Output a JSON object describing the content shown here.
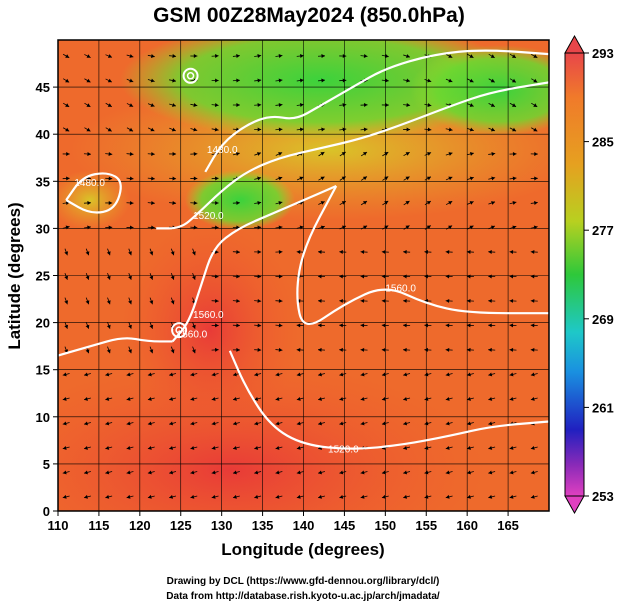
{
  "chart_data": {
    "type": "heatmap",
    "title": "GSM 00Z28May2024 (850.0hPa)",
    "xlabel": "Longitude (degrees)",
    "ylabel": "Latitude  (degrees)",
    "xlim": [
      110,
      170
    ],
    "ylim": [
      0,
      50
    ],
    "x_ticks": [
      "110",
      "115",
      "120",
      "125",
      "130",
      "135",
      "140",
      "145",
      "150",
      "155",
      "160",
      "165"
    ],
    "y_ticks": [
      "0",
      "5",
      "10",
      "15",
      "20",
      "25",
      "30",
      "35",
      "40",
      "45"
    ],
    "grid": true,
    "colorbar": {
      "placement": "right",
      "min": 253,
      "max": 293,
      "tick_labels": [
        "293",
        "285",
        "277",
        "269",
        "261",
        "253"
      ]
    },
    "contours": [
      {
        "label": "1560.0",
        "points": [
          [
            110,
            16.5
          ],
          [
            114,
            17.5
          ],
          [
            118,
            18.5
          ],
          [
            121,
            18
          ],
          [
            124,
            18
          ]
        ],
        "label_at": [
          124.5,
          18.4
        ]
      },
      {
        "label": "1560.0",
        "points": [
          [
            124,
            18
          ],
          [
            126,
            20
          ],
          [
            127.5,
            24
          ],
          [
            129,
            28
          ],
          [
            132,
            30
          ],
          [
            136,
            31.5
          ],
          [
            140,
            33
          ],
          [
            144,
            34.5
          ]
        ],
        "label_at": [
          126.5,
          20.5
        ]
      },
      {
        "label": "1560.0",
        "points": [
          [
            144,
            34.5
          ],
          [
            140,
            28
          ],
          [
            139,
            23
          ],
          [
            140,
            19
          ],
          [
            145,
            22
          ],
          [
            150,
            24
          ],
          [
            155,
            22
          ],
          [
            160,
            21
          ],
          [
            170,
            21
          ]
        ],
        "label_at": [
          150,
          23.3
        ]
      },
      {
        "label": "1520.0",
        "points": [
          [
            131,
            17
          ],
          [
            133,
            13
          ],
          [
            136,
            9
          ],
          [
            140,
            7
          ],
          [
            146,
            6.5
          ],
          [
            152,
            7
          ],
          [
            158,
            8
          ],
          [
            163,
            9
          ],
          [
            170,
            9.5
          ]
        ],
        "label_at": [
          143,
          6.2
        ]
      },
      {
        "label": "1520.0",
        "points": [
          [
            122,
            30
          ],
          [
            125,
            30
          ],
          [
            127,
            31.5
          ],
          [
            130,
            34
          ],
          [
            133,
            36
          ],
          [
            137,
            37.5
          ],
          [
            142,
            38.5
          ],
          [
            147,
            39.5
          ],
          [
            152,
            41
          ],
          [
            158,
            43
          ],
          [
            163,
            44.5
          ],
          [
            170,
            45.5
          ]
        ],
        "label_at": [
          126.5,
          31
        ]
      },
      {
        "label": "1480.0",
        "points": [
          [
            128,
            36
          ],
          [
            130,
            39
          ],
          [
            133,
            41
          ],
          [
            136,
            42
          ],
          [
            139,
            41.5
          ],
          [
            142,
            43
          ],
          [
            146,
            45
          ],
          [
            150,
            47
          ],
          [
            156,
            48.5
          ],
          [
            162,
            49
          ],
          [
            170,
            48.5
          ]
        ],
        "label_at": [
          128.2,
          38
        ]
      },
      {
        "label": "1480.0",
        "points": [
          [
            111,
            33
          ],
          [
            113,
            35.5
          ],
          [
            116,
            36
          ],
          [
            118,
            35
          ],
          [
            117,
            32
          ],
          [
            114,
            31.5
          ],
          [
            111,
            33
          ]
        ],
        "label_at": [
          112,
          34.5
        ]
      }
    ],
    "lows": [
      [
        126.2,
        46.2
      ],
      [
        124.8,
        19.2
      ]
    ],
    "series": [
      {
        "name": "",
        "values": []
      }
    ],
    "annotations": [
      "Drawing by DCL (https://www.gfd-dennou.org/library/dcl/)",
      "Data from http://database.rish.kyoto-u.ac.jp/arch/jmadata/"
    ]
  }
}
